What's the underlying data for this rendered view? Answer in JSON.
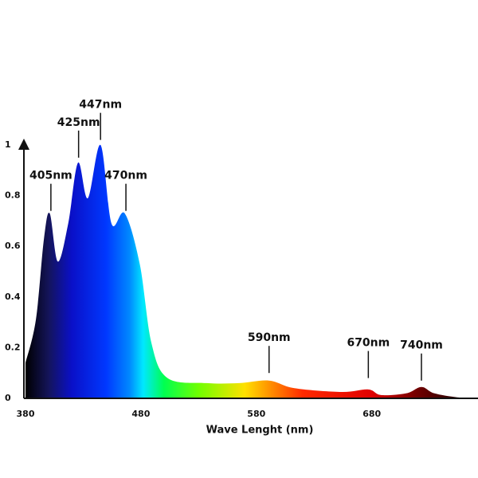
{
  "chart_data": {
    "type": "area",
    "x_label": "Wave Lenght (nm)",
    "x": [
      380,
      389,
      396,
      401,
      408,
      417,
      425.5,
      434,
      445,
      454.5,
      466,
      479,
      489,
      503,
      537,
      565,
      591,
      613,
      654,
      677,
      688,
      710,
      723,
      734,
      754,
      772
    ],
    "values": [
      0.14,
      0.31,
      0.63,
      0.73,
      0.54,
      0.69,
      0.93,
      0.79,
      1.0,
      0.69,
      0.73,
      0.53,
      0.22,
      0.08,
      0.06,
      0.06,
      0.07,
      0.04,
      0.025,
      0.035,
      0.013,
      0.02,
      0.045,
      0.02,
      0.004,
      0
    ],
    "xlim": [
      380,
      772
    ],
    "ylim": [
      0,
      1
    ],
    "xticks": [
      380,
      480,
      580,
      680
    ],
    "yticks": [
      0,
      0.2,
      0.4,
      0.6,
      0.8,
      1
    ],
    "gradient": [
      {
        "nm": 380,
        "color": "#000000"
      },
      {
        "nm": 400,
        "color": "#14145a"
      },
      {
        "nm": 420,
        "color": "#0a10c8"
      },
      {
        "nm": 450,
        "color": "#0038ff"
      },
      {
        "nm": 470,
        "color": "#0088ff"
      },
      {
        "nm": 482,
        "color": "#00e8ff"
      },
      {
        "nm": 500,
        "color": "#00ff50"
      },
      {
        "nm": 530,
        "color": "#70ff00"
      },
      {
        "nm": 570,
        "color": "#ffe000"
      },
      {
        "nm": 592,
        "color": "#ff9000"
      },
      {
        "nm": 620,
        "color": "#ff2a00"
      },
      {
        "nm": 680,
        "color": "#e00000"
      },
      {
        "nm": 720,
        "color": "#700000"
      },
      {
        "nm": 772,
        "color": "#000000"
      }
    ],
    "annotations": [
      {
        "label": "405nm",
        "x": 402,
        "y": 0.74
      },
      {
        "label": "425nm",
        "x": 426,
        "y": 0.95
      },
      {
        "label": "447nm",
        "x": 445,
        "y": 1.02
      },
      {
        "label": "470nm",
        "x": 467,
        "y": 0.74
      },
      {
        "label": "590nm",
        "x": 591,
        "y": 0.1
      },
      {
        "label": "670nm",
        "x": 677,
        "y": 0.08
      },
      {
        "label": "740nm",
        "x": 723,
        "y": 0.07
      }
    ]
  }
}
